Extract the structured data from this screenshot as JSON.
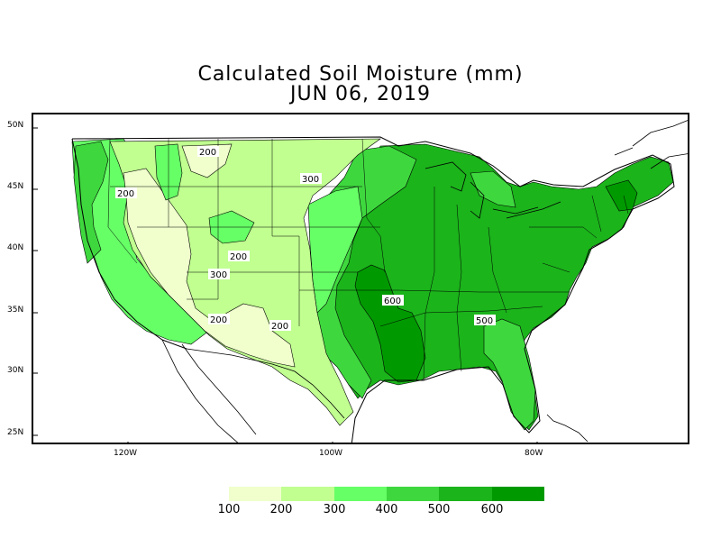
{
  "title": {
    "line1": "Calculated Soil Moisture (mm)",
    "line2": "JUN 06, 2019"
  },
  "axes": {
    "lat_labels": [
      "50N",
      "45N",
      "40N",
      "35N",
      "30N",
      "25N"
    ],
    "lon_labels": [
      "120W",
      "100W",
      "80W"
    ]
  },
  "contour_labels": [
    "200",
    "200",
    "300",
    "200",
    "300",
    "200",
    "200",
    "600",
    "500"
  ],
  "legend": {
    "labels": [
      "100",
      "200",
      "300",
      "400",
      "500",
      "600"
    ],
    "colors": [
      "#f0ffcc",
      "#c0ff90",
      "#66ff66",
      "#3ed83e",
      "#1bb41b",
      "#009a00"
    ]
  },
  "colors": {
    "ocean": "#ffffff",
    "border": "#000000"
  }
}
